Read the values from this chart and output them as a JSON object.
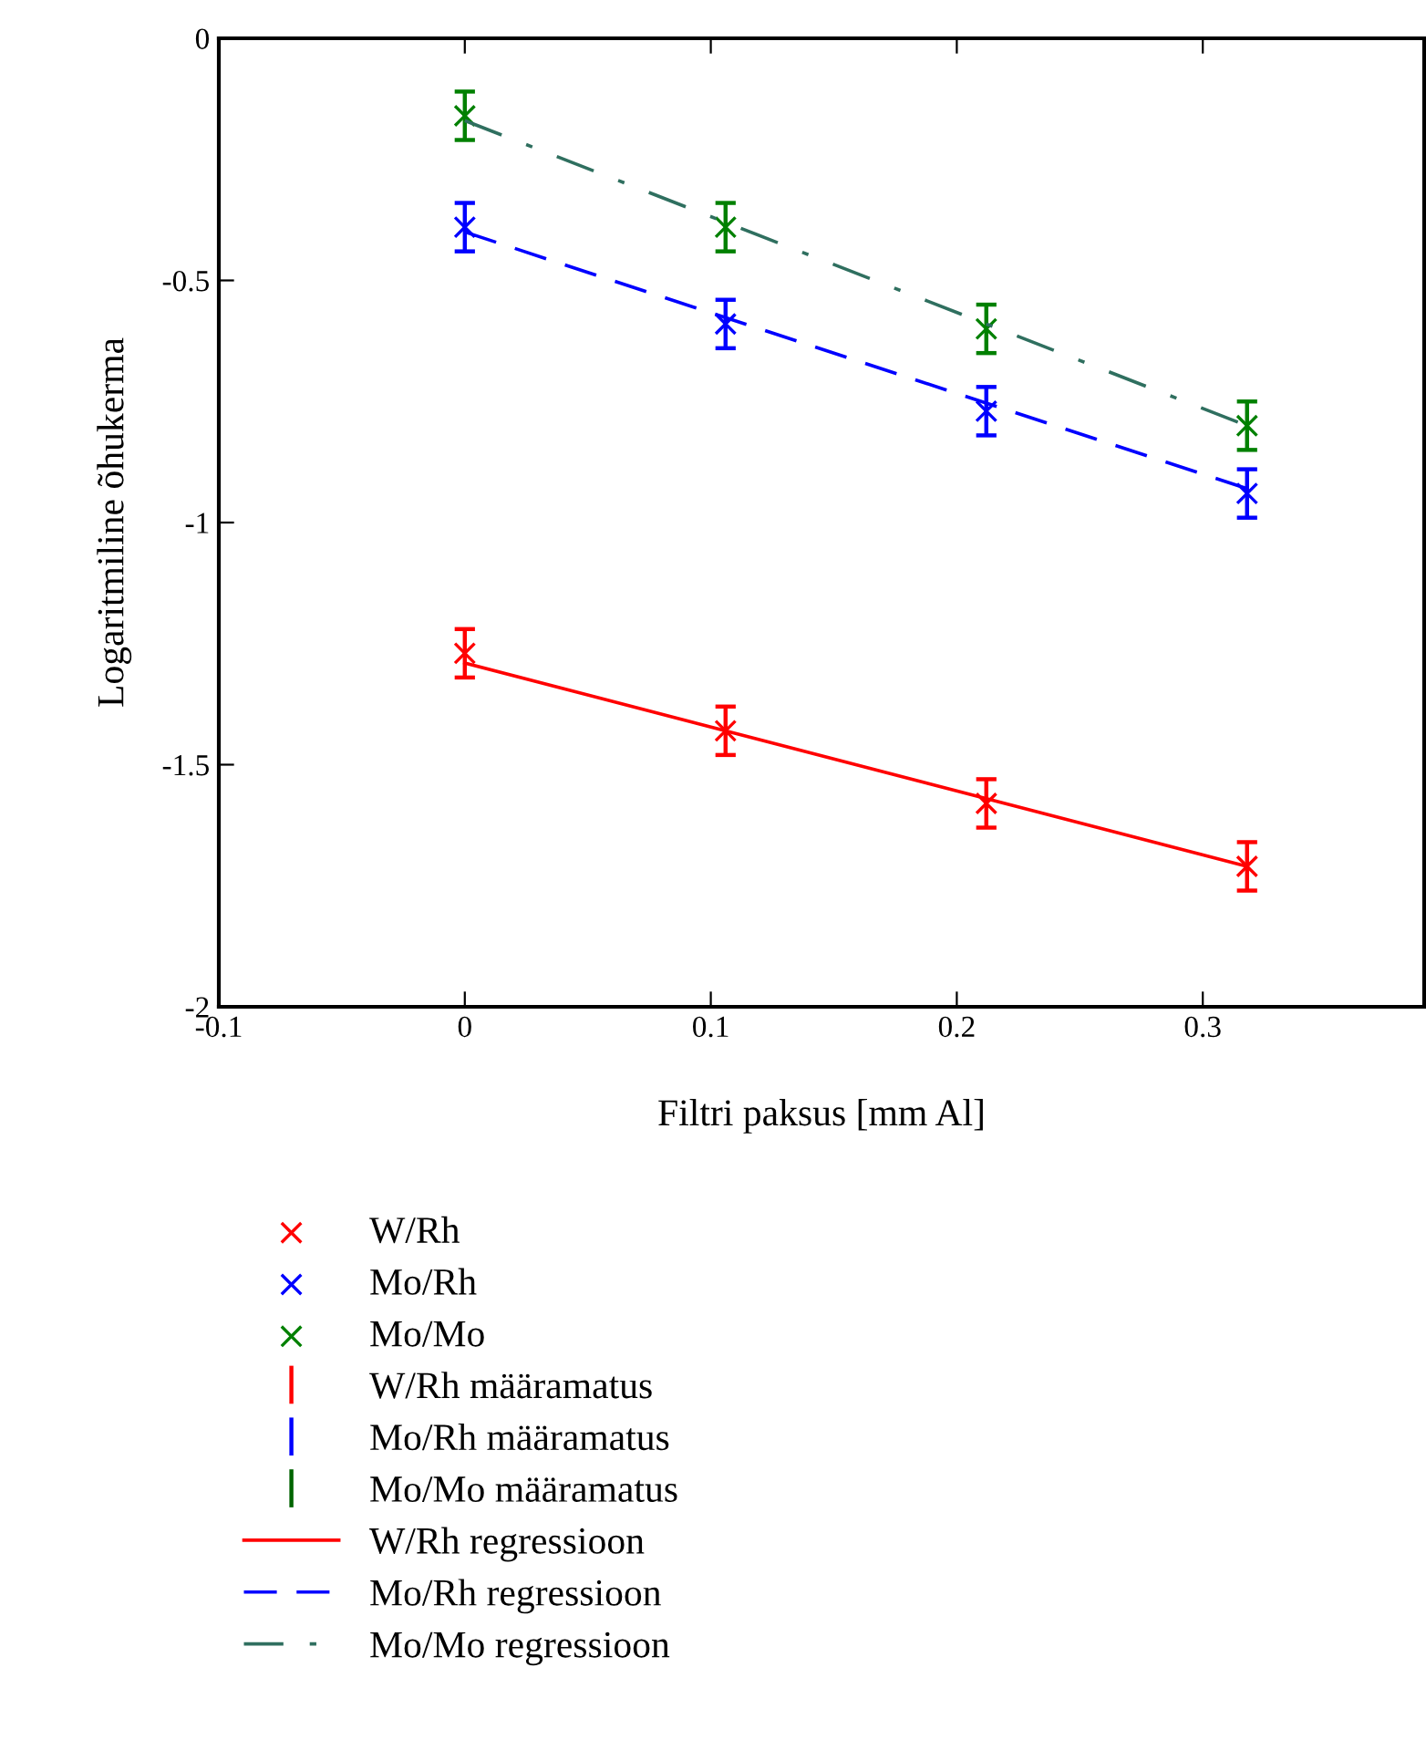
{
  "chart_data": {
    "type": "scatter",
    "xlabel": "Filtri paksus [mm Al]",
    "ylabel": "Logaritmiline õhukerma",
    "xlim": [
      -0.1,
      0.39
    ],
    "xticks": [
      -0.1,
      0,
      0.1,
      0.2,
      0.3
    ],
    "ylim": [
      -2,
      0
    ],
    "yticks": [
      -2,
      -1.5,
      -1,
      -0.5,
      0
    ],
    "grid": false,
    "legend": "bottom",
    "series": [
      {
        "name": "W/Rh",
        "marker": "cross",
        "color": "#ff0000",
        "x": [
          0,
          0.106,
          0.212,
          0.318
        ],
        "values": [
          -1.27,
          -1.43,
          -1.58,
          -1.71
        ],
        "errors": [
          0.05,
          0.05,
          0.05,
          0.05
        ]
      },
      {
        "name": "Mo/Rh",
        "marker": "cross",
        "color": "#0000ff",
        "x": [
          0,
          0.106,
          0.212,
          0.318
        ],
        "values": [
          -0.39,
          -0.59,
          -0.77,
          -0.94
        ],
        "errors": [
          0.05,
          0.05,
          0.05,
          0.05
        ]
      },
      {
        "name": "Mo/Mo",
        "marker": "cross",
        "color": "#008000",
        "x": [
          0,
          0.106,
          0.212,
          0.318
        ],
        "values": [
          -0.16,
          -0.39,
          -0.6,
          -0.8
        ],
        "errors": [
          0.05,
          0.05,
          0.05,
          0.05
        ]
      },
      {
        "name": "W/Rh määramatus",
        "marker": "none",
        "color": "#ff0000"
      },
      {
        "name": "Mo/Rh määramatus",
        "marker": "none",
        "color": "#0000ff"
      },
      {
        "name": "Mo/Mo määramatus",
        "marker": "none",
        "color": "#006400"
      },
      {
        "name": "W/Rh regressioon",
        "type": "line",
        "line_style": "solid",
        "color": "#ff0000",
        "x": [
          0,
          0.318
        ],
        "values": [
          -1.29,
          -1.71
        ]
      },
      {
        "name": "Mo/Rh regressioon",
        "type": "line",
        "line_style": "dashed",
        "color": "#0000ff",
        "x": [
          0,
          0.318
        ],
        "values": [
          -0.4,
          -0.93
        ]
      },
      {
        "name": "Mo/Mo regressioon",
        "type": "line",
        "line_style": "dashdot",
        "color": "#2f6f5f",
        "x": [
          0,
          0.318
        ],
        "values": [
          -0.17,
          -0.8
        ]
      }
    ]
  }
}
